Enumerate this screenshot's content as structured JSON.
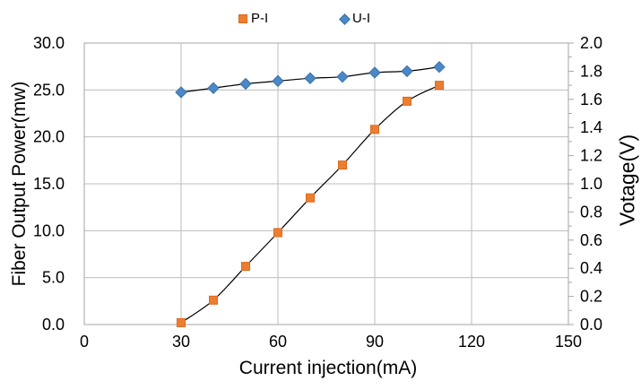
{
  "chart_data": {
    "type": "line",
    "title": "",
    "xlabel": "Current injection(mA)",
    "ylabel_left": "Fiber Output Power(mw)",
    "ylabel_right": "Votage(V)",
    "xlim": [
      0,
      150
    ],
    "ylim_left": [
      0,
      30
    ],
    "ylim_right": [
      0,
      2
    ],
    "x_ticks": [
      "0",
      "30",
      "60",
      "90",
      "120",
      "150"
    ],
    "y_ticks_left": [
      "0.0",
      "5.0",
      "10.0",
      "15.0",
      "20.0",
      "25.0",
      "30.0"
    ],
    "y_ticks_right": [
      "0.0",
      "0.2",
      "0.4",
      "0.6",
      "0.8",
      "1.0",
      "1.2",
      "1.4",
      "1.6",
      "1.8",
      "2.0"
    ],
    "grid": true,
    "legend_position": "top-center",
    "x": [
      30,
      40,
      50,
      60,
      70,
      80,
      90,
      100,
      110
    ],
    "series": [
      {
        "name": "P-I",
        "axis": "left",
        "marker": "square",
        "marker_color": "#ED7D31",
        "marker_edge": "#DC6A1E",
        "line_color": "#000000",
        "values": [
          0.2,
          2.6,
          6.2,
          9.8,
          13.5,
          17.0,
          20.8,
          23.8,
          25.5
        ]
      },
      {
        "name": "U-I",
        "axis": "right",
        "marker": "diamond",
        "marker_color": "#4A89C8",
        "marker_edge": "#3D6FA3",
        "line_color": "#000000",
        "values": [
          1.65,
          1.68,
          1.71,
          1.73,
          1.75,
          1.76,
          1.79,
          1.8,
          1.83
        ]
      }
    ],
    "colors": {
      "grid": "#BDBDBD",
      "axis": "#A6A6A6",
      "text": "#000000",
      "background": "#FFFFFF"
    }
  }
}
